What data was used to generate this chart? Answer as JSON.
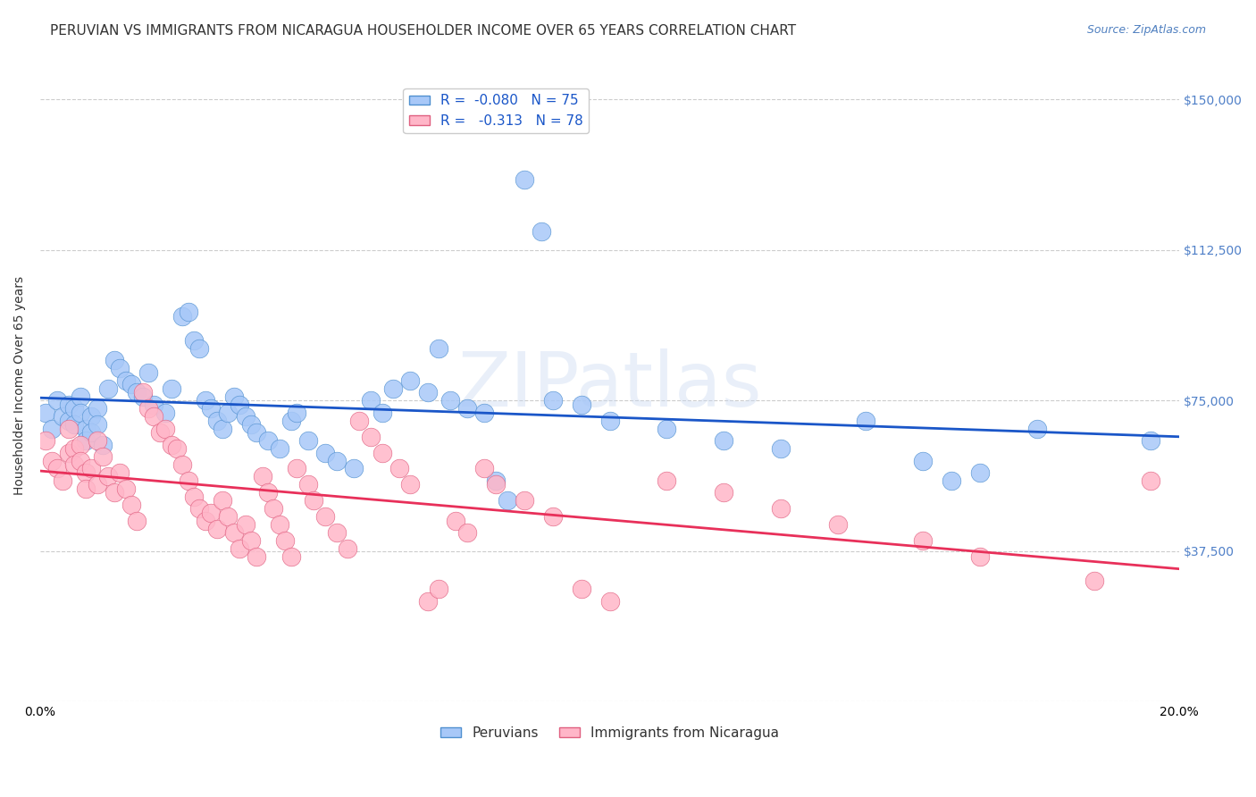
{
  "title": "PERUVIAN VS IMMIGRANTS FROM NICARAGUA HOUSEHOLDER INCOME OVER 65 YEARS CORRELATION CHART",
  "source": "Source: ZipAtlas.com",
  "xlabel": "",
  "ylabel": "Householder Income Over 65 years",
  "xlim": [
    0.0,
    0.2
  ],
  "ylim": [
    0,
    157500
  ],
  "yticks": [
    0,
    37500,
    75000,
    112500,
    150000
  ],
  "ytick_labels": [
    "",
    "$37,500",
    "$75,000",
    "$112,500",
    "$150,000"
  ],
  "xticks": [
    0.0,
    0.05,
    0.1,
    0.15,
    0.2
  ],
  "xtick_labels": [
    "0.0%",
    "",
    "",
    "",
    "20.0%"
  ],
  "legend_entries": [
    {
      "label": "R =  -0.080   N = 75",
      "color": "#a8c8f8"
    },
    {
      "label": "R =   -0.313   N = 78",
      "color": "#f8b8c8"
    }
  ],
  "series": [
    {
      "name": "Peruvians",
      "color": "#6baed6",
      "edge_color": "#4292c6",
      "trend_color": "#1a56b0",
      "R": -0.08,
      "N": 75,
      "x": [
        0.001,
        0.002,
        0.003,
        0.004,
        0.005,
        0.005,
        0.006,
        0.006,
        0.007,
        0.007,
        0.008,
        0.008,
        0.009,
        0.009,
        0.01,
        0.01,
        0.011,
        0.012,
        0.013,
        0.014,
        0.015,
        0.016,
        0.017,
        0.018,
        0.019,
        0.02,
        0.022,
        0.023,
        0.025,
        0.026,
        0.027,
        0.028,
        0.029,
        0.03,
        0.031,
        0.032,
        0.033,
        0.034,
        0.035,
        0.036,
        0.037,
        0.038,
        0.04,
        0.042,
        0.044,
        0.045,
        0.047,
        0.05,
        0.052,
        0.055,
        0.058,
        0.06,
        0.062,
        0.065,
        0.068,
        0.07,
        0.072,
        0.075,
        0.078,
        0.08,
        0.082,
        0.085,
        0.088,
        0.09,
        0.095,
        0.1,
        0.11,
        0.12,
        0.13,
        0.145,
        0.155,
        0.16,
        0.165,
        0.175,
        0.195
      ],
      "y": [
        72000,
        68000,
        75000,
        71000,
        74000,
        70000,
        73000,
        69000,
        76000,
        72000,
        68000,
        65000,
        71000,
        67000,
        73000,
        69000,
        64000,
        78000,
        85000,
        83000,
        80000,
        79000,
        77000,
        76000,
        82000,
        74000,
        72000,
        78000,
        96000,
        97000,
        90000,
        88000,
        75000,
        73000,
        70000,
        68000,
        72000,
        76000,
        74000,
        71000,
        69000,
        67000,
        65000,
        63000,
        70000,
        72000,
        65000,
        62000,
        60000,
        58000,
        75000,
        72000,
        78000,
        80000,
        77000,
        88000,
        75000,
        73000,
        72000,
        55000,
        50000,
        130000,
        117000,
        75000,
        74000,
        70000,
        68000,
        65000,
        63000,
        70000,
        60000,
        55000,
        57000,
        68000,
        65000
      ]
    },
    {
      "name": "Immigrants from Nicaragua",
      "color": "#f9a8c0",
      "edge_color": "#e87090",
      "trend_color": "#e8305a",
      "R": -0.313,
      "N": 78,
      "x": [
        0.001,
        0.002,
        0.003,
        0.004,
        0.005,
        0.005,
        0.006,
        0.006,
        0.007,
        0.007,
        0.008,
        0.008,
        0.009,
        0.01,
        0.01,
        0.011,
        0.012,
        0.013,
        0.014,
        0.015,
        0.016,
        0.017,
        0.018,
        0.019,
        0.02,
        0.021,
        0.022,
        0.023,
        0.024,
        0.025,
        0.026,
        0.027,
        0.028,
        0.029,
        0.03,
        0.031,
        0.032,
        0.033,
        0.034,
        0.035,
        0.036,
        0.037,
        0.038,
        0.039,
        0.04,
        0.041,
        0.042,
        0.043,
        0.044,
        0.045,
        0.047,
        0.048,
        0.05,
        0.052,
        0.054,
        0.056,
        0.058,
        0.06,
        0.063,
        0.065,
        0.068,
        0.07,
        0.073,
        0.075,
        0.078,
        0.08,
        0.085,
        0.09,
        0.095,
        0.1,
        0.11,
        0.12,
        0.13,
        0.14,
        0.155,
        0.165,
        0.185,
        0.195
      ],
      "y": [
        65000,
        60000,
        58000,
        55000,
        68000,
        62000,
        63000,
        59000,
        64000,
        60000,
        57000,
        53000,
        58000,
        54000,
        65000,
        61000,
        56000,
        52000,
        57000,
        53000,
        49000,
        45000,
        77000,
        73000,
        71000,
        67000,
        68000,
        64000,
        63000,
        59000,
        55000,
        51000,
        48000,
        45000,
        47000,
        43000,
        50000,
        46000,
        42000,
        38000,
        44000,
        40000,
        36000,
        56000,
        52000,
        48000,
        44000,
        40000,
        36000,
        58000,
        54000,
        50000,
        46000,
        42000,
        38000,
        70000,
        66000,
        62000,
        58000,
        54000,
        25000,
        28000,
        45000,
        42000,
        58000,
        54000,
        50000,
        46000,
        28000,
        25000,
        55000,
        52000,
        48000,
        44000,
        40000,
        36000,
        30000,
        55000
      ]
    }
  ],
  "watermark": "ZIPatlas",
  "background_color": "#ffffff",
  "grid_color": "#cccccc",
  "grid_style": "--",
  "title_fontsize": 11,
  "axis_label_fontsize": 10,
  "tick_fontsize": 10,
  "legend_fontsize": 11,
  "watermark_color": "#c8d8f0",
  "watermark_alpha": 0.5,
  "source_color": "#5080c0"
}
